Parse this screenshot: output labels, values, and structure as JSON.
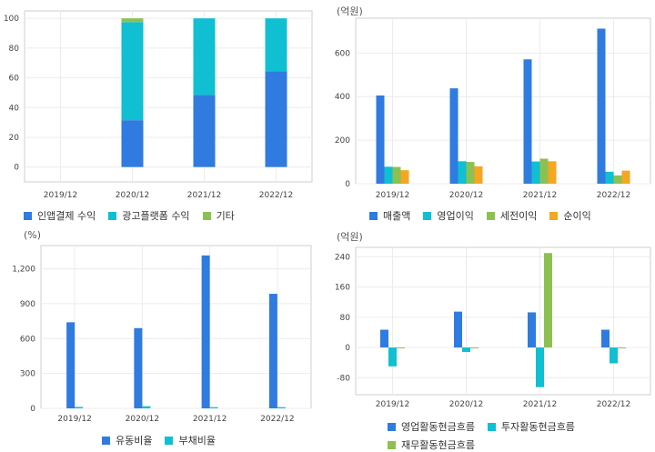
{
  "chart_data": [
    {
      "id": "revenue-mix",
      "type": "bar",
      "stacked": true,
      "unit": "",
      "categories": [
        "2019/12",
        "2020/12",
        "2021/12",
        "2022/12"
      ],
      "series": [
        {
          "name": "인앱결제 수익",
          "color": "#2f7be0",
          "values": [
            0,
            31.5,
            48.5,
            64.5
          ]
        },
        {
          "name": "광고플랫폼 수익",
          "color": "#10bfd2",
          "values": [
            0,
            66,
            51.5,
            35.5
          ]
        },
        {
          "name": "기타",
          "color": "#8cc152",
          "values": [
            0,
            2.5,
            0,
            0
          ]
        }
      ],
      "ylim": [
        -10,
        105
      ],
      "yticks": [
        0,
        20,
        40,
        60,
        80,
        100
      ],
      "ytick_labels": [
        "0",
        "20",
        "40",
        "60",
        "80",
        "100"
      ],
      "grid": true,
      "legend": "bottom"
    },
    {
      "id": "income-statement",
      "type": "bar",
      "stacked": false,
      "unit": "(억원)",
      "categories": [
        "2019/12",
        "2020/12",
        "2021/12",
        "2022/12"
      ],
      "series": [
        {
          "name": "매출액",
          "color": "#2f7be0",
          "values": [
            405,
            438,
            571,
            712
          ]
        },
        {
          "name": "영업이익",
          "color": "#10bfd2",
          "values": [
            78,
            103,
            102,
            55
          ]
        },
        {
          "name": "세전이익",
          "color": "#8cc152",
          "values": [
            77,
            100,
            115,
            38
          ]
        },
        {
          "name": "순이익",
          "color": "#f5a623",
          "values": [
            62,
            80,
            103,
            60
          ]
        }
      ],
      "ylim": [
        0,
        760
      ],
      "yticks": [
        0,
        200,
        400,
        600
      ],
      "ytick_labels": [
        "0",
        "200",
        "400",
        "600"
      ],
      "grid": true,
      "legend": "bottom"
    },
    {
      "id": "ratios",
      "type": "bar",
      "stacked": false,
      "unit": "(%)",
      "categories": [
        "2019/12",
        "2020/12",
        "2021/12",
        "2022/12"
      ],
      "series": [
        {
          "name": "유동비율",
          "color": "#2f7be0",
          "values": [
            740,
            690,
            1315,
            985
          ]
        },
        {
          "name": "부채비율",
          "color": "#10bfd2",
          "values": [
            12,
            18,
            10,
            10
          ]
        }
      ],
      "ylim": [
        0,
        1400
      ],
      "yticks": [
        0,
        300,
        600,
        900,
        1200
      ],
      "ytick_labels": [
        "0",
        "300",
        "600",
        "900",
        "1,200"
      ],
      "grid": true,
      "legend": "bottom"
    },
    {
      "id": "cash-flow",
      "type": "bar",
      "stacked": false,
      "unit": "(억원)",
      "categories": [
        "2019/12",
        "2020/12",
        "2021/12",
        "2022/12"
      ],
      "series": [
        {
          "name": "영업활동현금흐름",
          "color": "#2f7be0",
          "values": [
            47,
            95,
            93,
            47
          ]
        },
        {
          "name": "투자활동현금흐름",
          "color": "#10bfd2",
          "values": [
            -50,
            -12,
            -105,
            -42
          ]
        },
        {
          "name": "재무활동현금흐름",
          "color": "#8cc152",
          "values": [
            -2,
            -2,
            250,
            -2
          ]
        }
      ],
      "ylim": [
        -125,
        265
      ],
      "yticks": [
        -80,
        0,
        80,
        160,
        240
      ],
      "ytick_labels": [
        "-80",
        "0",
        "80",
        "160",
        "240"
      ],
      "grid": true,
      "legend": "bottom"
    }
  ]
}
